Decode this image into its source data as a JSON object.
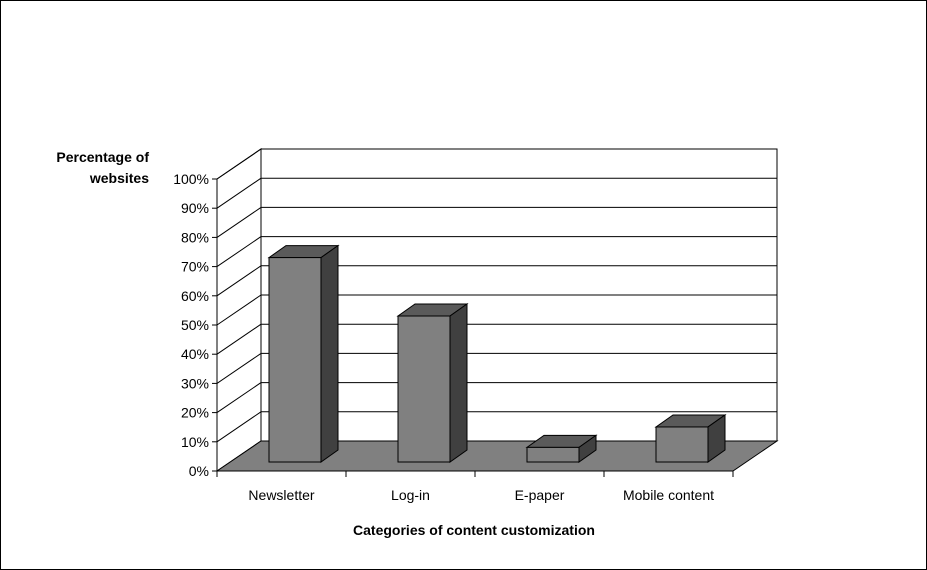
{
  "chart_data": {
    "type": "bar",
    "ylabel_lines": [
      "Percentage of",
      "websites"
    ],
    "xlabel": "Categories of content customization",
    "categories": [
      "Newsletter",
      "Log-in",
      "E-paper",
      "Mobile content"
    ],
    "values": [
      70,
      50,
      5,
      12
    ],
    "ylim": [
      0,
      100
    ],
    "yticks": [
      "0%",
      "10%",
      "20%",
      "30%",
      "40%",
      "50%",
      "60%",
      "70%",
      "80%",
      "90%",
      "100%"
    ],
    "grid": true,
    "legend": "none",
    "colors": {
      "bar_front": "#808080",
      "bar_top": "#5a5a5a",
      "bar_side": "#404040",
      "floor": "#808080"
    }
  }
}
